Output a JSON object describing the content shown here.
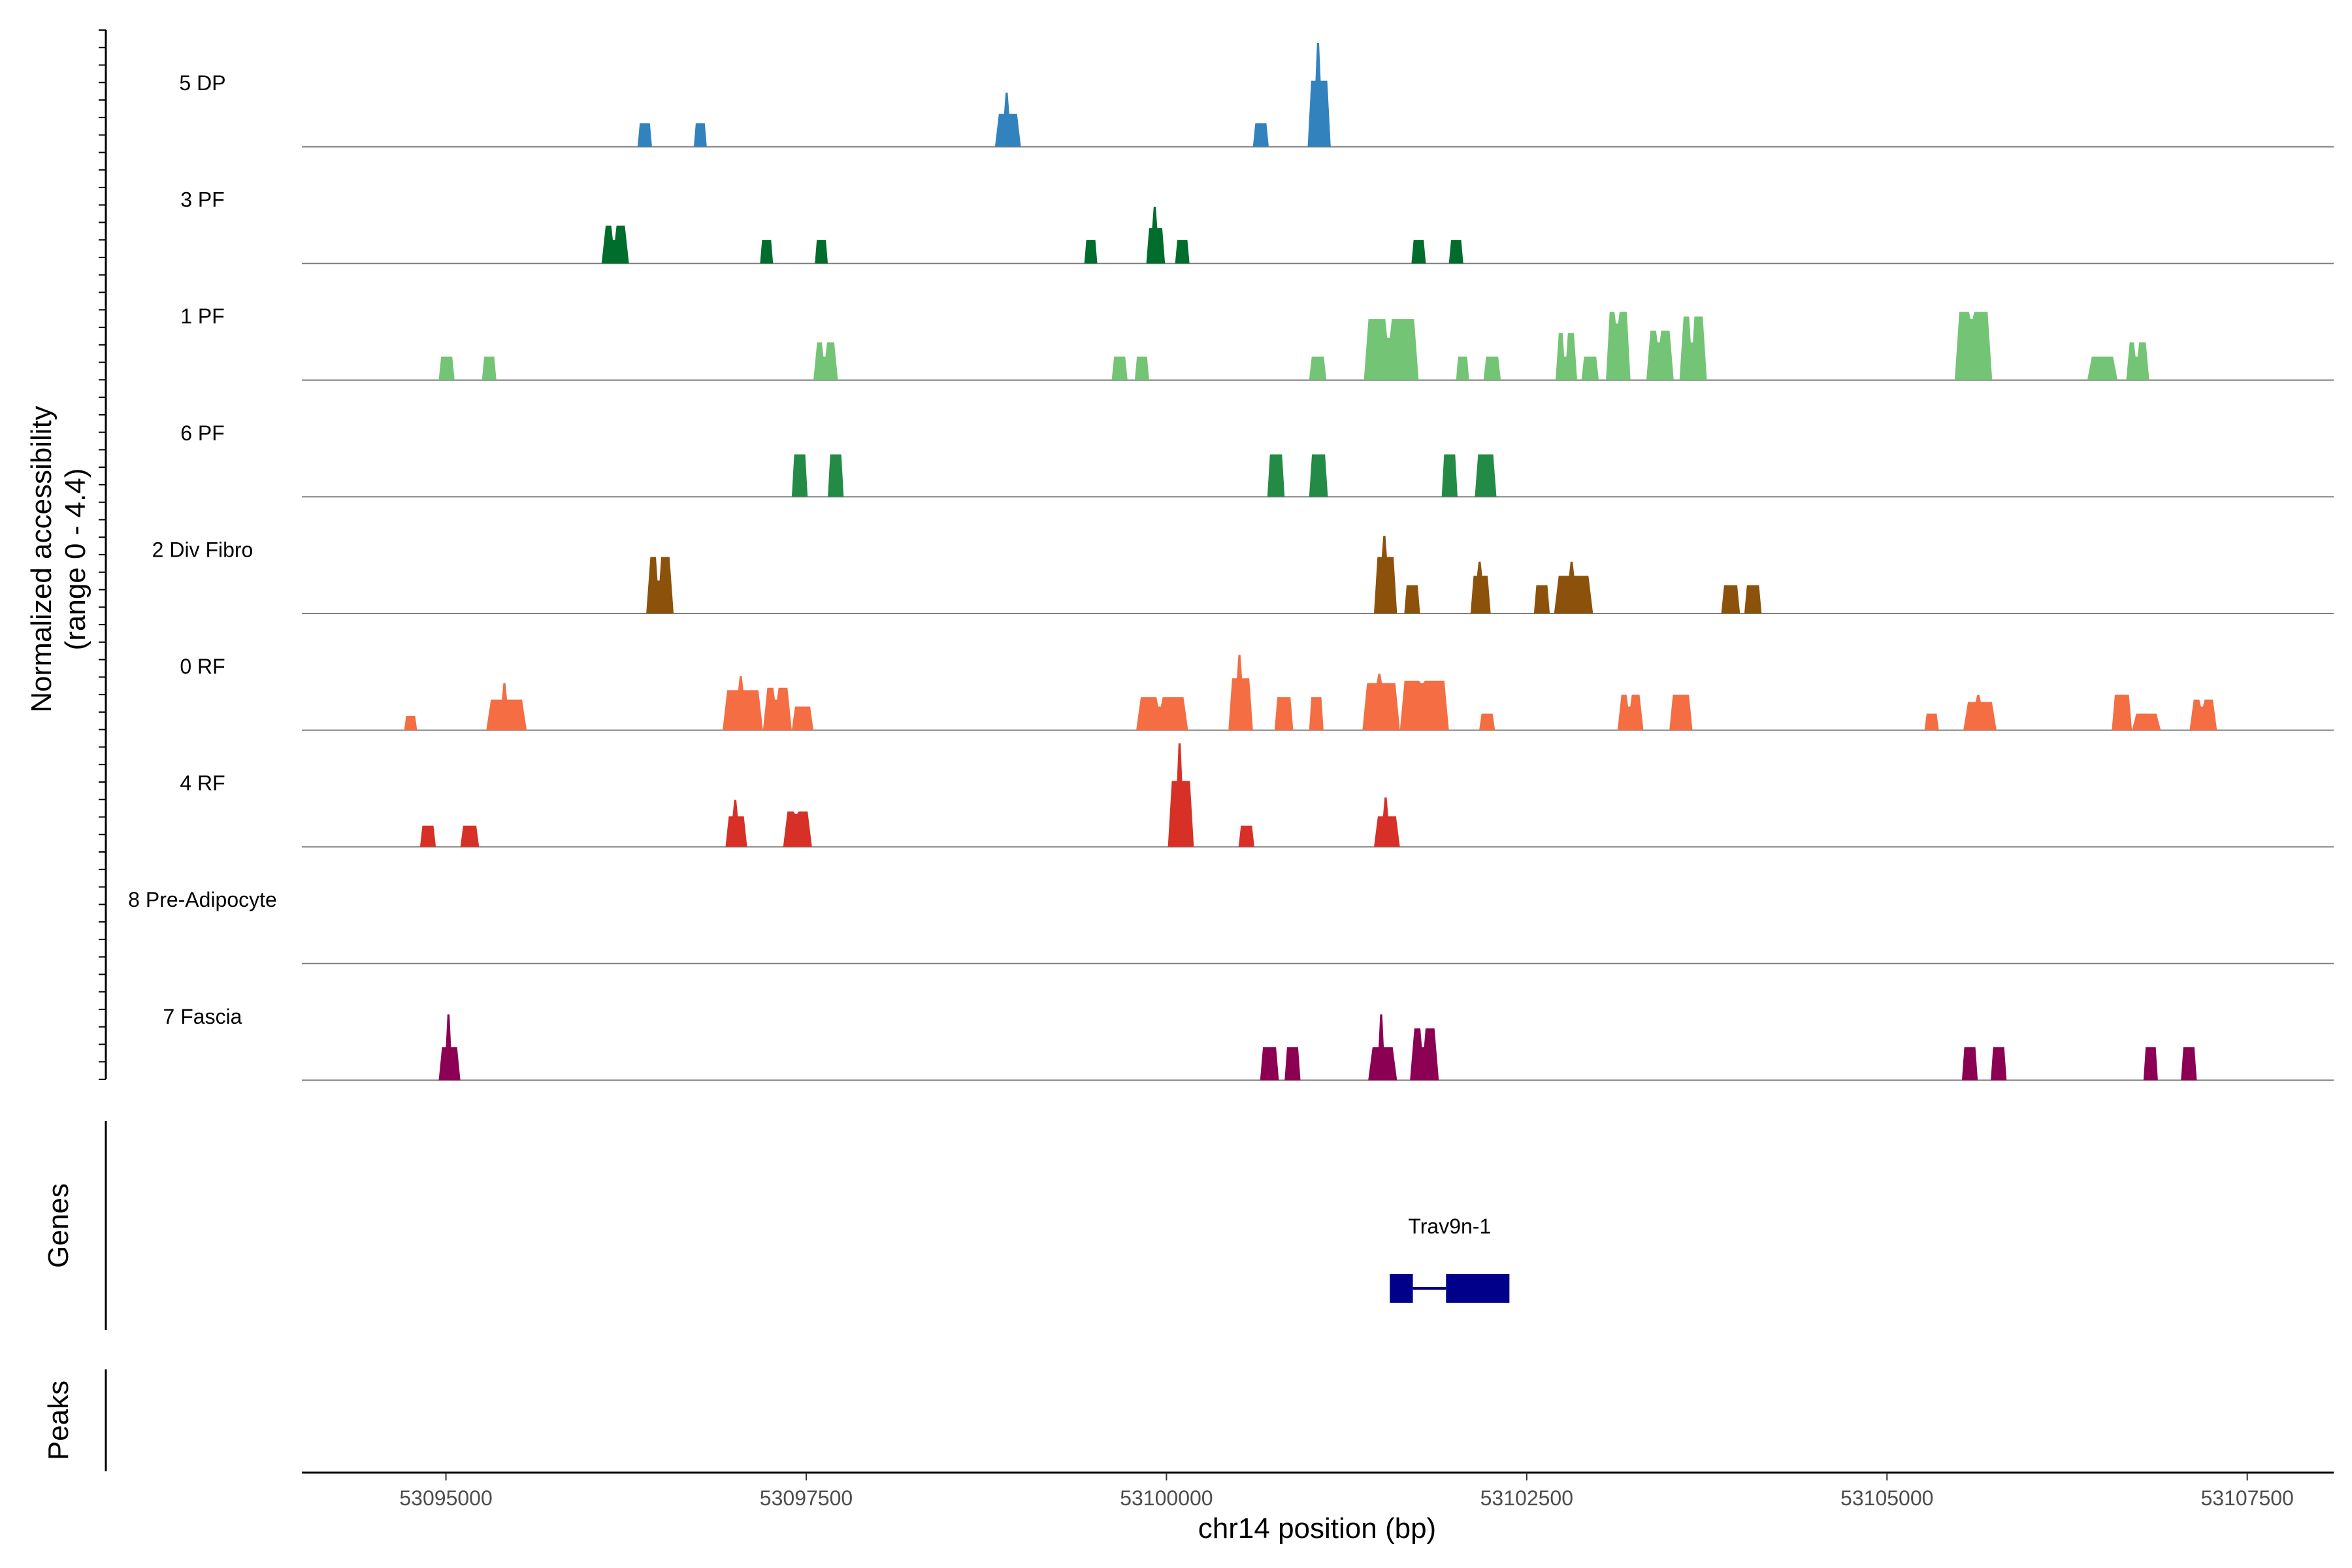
{
  "chart_data": {
    "type": "coverage",
    "ylabel_line1": "Normalized accessibility",
    "ylabel_line2": "(range 0 - 4.4)",
    "xlabel": "chr14 position (bp)",
    "xlim": [
      53094000,
      53108100
    ],
    "xticks": [
      53095000,
      53097500,
      53100000,
      53102500,
      53105000,
      53107500
    ],
    "xtick_labels": [
      "53095000",
      "53097500",
      "53100000",
      "53102500",
      "53105000",
      "53107500"
    ],
    "y_range": [
      0,
      4.4
    ],
    "tracks": [
      {
        "name": "5 DP",
        "color": "#3182bd",
        "peaks": [
          [
            53096330,
            53096430,
            1.0
          ],
          [
            53096720,
            53096810,
            1.0
          ],
          [
            53098810,
            53098990,
            2.3,
            1.4
          ],
          [
            53100600,
            53100710,
            1.0
          ],
          [
            53100980,
            53101140,
            4.4,
            2.8
          ]
        ]
      },
      {
        "name": "3 PF",
        "color": "#006d2c",
        "peaks": [
          [
            53096080,
            53096270,
            1.0,
            1.6
          ],
          [
            53097180,
            53097270,
            1.0
          ],
          [
            53097560,
            53097650,
            1.0
          ],
          [
            53099430,
            53099520,
            1.0
          ],
          [
            53099860,
            53099990,
            2.4,
            1.5
          ],
          [
            53100060,
            53100160,
            1.0
          ],
          [
            53101700,
            53101800,
            1.0
          ],
          [
            53101960,
            53102060,
            1.0
          ]
        ]
      },
      {
        "name": "1 PF",
        "color": "#74c476",
        "peaks": [
          [
            53094950,
            53095060,
            1.0
          ],
          [
            53095250,
            53095350,
            1.0
          ],
          [
            53097550,
            53097720,
            1.0,
            1.6
          ],
          [
            53099620,
            53099730,
            1.0
          ],
          [
            53099780,
            53099880,
            1.0
          ],
          [
            53100990,
            53101110,
            1.0
          ],
          [
            53101370,
            53101750,
            1.8,
            2.6
          ],
          [
            53102010,
            53102100,
            1.0
          ],
          [
            53102200,
            53102320,
            1.0
          ],
          [
            53102700,
            53102850,
            1.0,
            2.0
          ],
          [
            53102880,
            53103000,
            1.0
          ],
          [
            53103050,
            53103220,
            2.4,
            2.9
          ],
          [
            53103330,
            53103520,
            1.6,
            2.1
          ],
          [
            53103560,
            53103750,
            1.6,
            2.7
          ],
          [
            53105470,
            53105730,
            2.6,
            2.9
          ],
          [
            53106390,
            53106600,
            1.0
          ],
          [
            53106660,
            53106820,
            1.0,
            1.6
          ]
        ]
      },
      {
        "name": "6 PF",
        "color": "#238b45",
        "peaks": [
          [
            53097400,
            53097510,
            1.8
          ],
          [
            53097650,
            53097760,
            1.8
          ],
          [
            53100700,
            53100820,
            1.8
          ],
          [
            53100990,
            53101120,
            1.8
          ],
          [
            53101910,
            53102020,
            1.8
          ],
          [
            53102140,
            53102290,
            1.8
          ]
        ]
      },
      {
        "name": "2 Div Fibro",
        "color": "#8c510a",
        "peaks": [
          [
            53096390,
            53096580,
            1.4,
            2.4
          ],
          [
            53101440,
            53101600,
            3.3,
            2.4
          ],
          [
            53101650,
            53101760,
            1.2
          ],
          [
            53102110,
            53102250,
            2.2,
            1.6
          ],
          [
            53102550,
            53102660,
            1.2
          ],
          [
            53102690,
            53102960,
            2.2,
            1.6
          ],
          [
            53103850,
            53103980,
            1.2
          ],
          [
            53104010,
            53104130,
            1.2
          ]
        ]
      },
      {
        "name": "0 RF",
        "color": "#f46d43",
        "peaks": [
          [
            53094710,
            53094800,
            0.6
          ],
          [
            53095280,
            53095560,
            2.0,
            1.3
          ],
          [
            53096920,
            53097200,
            2.3,
            1.7
          ],
          [
            53097200,
            53097400,
            1.3,
            1.8
          ],
          [
            53097400,
            53097550,
            1.0
          ],
          [
            53099790,
            53100150,
            1.0,
            1.4
          ],
          [
            53100430,
            53100600,
            3.2,
            2.2
          ],
          [
            53100750,
            53100880,
            1.4
          ],
          [
            53100990,
            53101090,
            1.4
          ],
          [
            53101360,
            53101620,
            2.4,
            2.0
          ],
          [
            53101620,
            53101960,
            2.0,
            2.1
          ],
          [
            53102170,
            53102280,
            0.7
          ],
          [
            53103130,
            53103310,
            1.0,
            1.5
          ],
          [
            53103490,
            53103650,
            1.5
          ],
          [
            53105260,
            53105360,
            0.7
          ],
          [
            53105530,
            53105760,
            1.5,
            1.2
          ],
          [
            53106560,
            53106700,
            1.5
          ],
          [
            53106700,
            53106900,
            0.7
          ],
          [
            53107100,
            53107290,
            1.0,
            1.3
          ]
        ]
      },
      {
        "name": "4 RF",
        "color": "#d73027",
        "peaks": [
          [
            53094820,
            53094930,
            0.9
          ],
          [
            53095100,
            53095230,
            0.9
          ],
          [
            53096940,
            53097090,
            2.0,
            1.3
          ],
          [
            53097340,
            53097540,
            1.4,
            1.5
          ],
          [
            53100010,
            53100190,
            4.4,
            2.8
          ],
          [
            53100500,
            53100610,
            0.9
          ],
          [
            53101440,
            53101620,
            2.1,
            1.3
          ]
        ]
      },
      {
        "name": "8 Pre-Adipocyte",
        "color": "#7a0177",
        "peaks": []
      },
      {
        "name": "7 Fascia",
        "color": "#8c0053",
        "peaks": [
          [
            53094950,
            53095100,
            2.8,
            1.4
          ],
          [
            53100650,
            53100780,
            1.4
          ],
          [
            53100820,
            53100930,
            1.4
          ],
          [
            53101400,
            53101600,
            2.8,
            1.4
          ],
          [
            53101690,
            53101890,
            1.4,
            2.2
          ],
          [
            53105520,
            53105630,
            1.4
          ],
          [
            53105720,
            53105830,
            1.4
          ],
          [
            53106780,
            53106880,
            1.4
          ],
          [
            53107040,
            53107150,
            1.4
          ]
        ]
      }
    ],
    "genes_label": "Genes",
    "genes": [
      {
        "name": "Trav9n-1",
        "color": "#00008b",
        "exons": [
          [
            53101550,
            53101710
          ],
          [
            53101940,
            53102380
          ]
        ],
        "intron": [
          53101710,
          53101940
        ]
      }
    ],
    "peaks_label": "Peaks"
  }
}
